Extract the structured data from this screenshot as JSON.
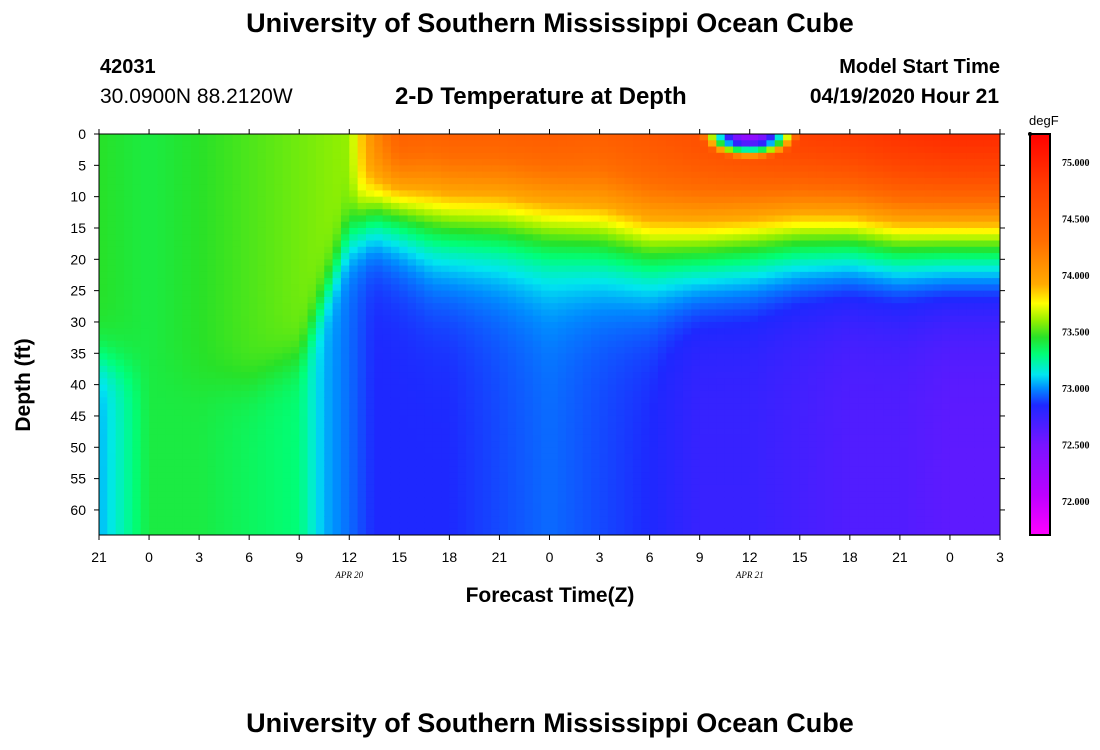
{
  "header": {
    "title": "University of Southern Mississippi Ocean Cube",
    "station_id": "42031",
    "coords": "30.0900N 88.2120W",
    "chart_title": "2-D Temperature at Depth",
    "start_label": "Model Start Time",
    "start_value": "04/19/2020 Hour 21"
  },
  "footer": {
    "title": "University of Southern Mississippi Ocean Cube"
  },
  "chart_data": {
    "type": "heatmap",
    "title": "2-D Temperature at Depth",
    "xlabel": "Forecast Time(Z)",
    "ylabel": "Depth (ft)",
    "x_unit": "hours since model start (04/19/2020 21Z)",
    "xlim": [
      0,
      54
    ],
    "ylim": [
      0,
      64
    ],
    "x_ticks": [
      {
        "h": 0,
        "label": "21"
      },
      {
        "h": 3,
        "label": "0"
      },
      {
        "h": 6,
        "label": "3"
      },
      {
        "h": 9,
        "label": "6"
      },
      {
        "h": 12,
        "label": "9"
      },
      {
        "h": 15,
        "label": "12"
      },
      {
        "h": 18,
        "label": "15"
      },
      {
        "h": 21,
        "label": "18"
      },
      {
        "h": 24,
        "label": "21"
      },
      {
        "h": 27,
        "label": "0"
      },
      {
        "h": 30,
        "label": "3"
      },
      {
        "h": 33,
        "label": "6"
      },
      {
        "h": 36,
        "label": "9"
      },
      {
        "h": 39,
        "label": "12"
      },
      {
        "h": 42,
        "label": "15"
      },
      {
        "h": 45,
        "label": "18"
      },
      {
        "h": 48,
        "label": "21"
      },
      {
        "h": 51,
        "label": "0"
      },
      {
        "h": 54,
        "label": "3"
      }
    ],
    "date_labels": [
      {
        "h": 15,
        "label": "APR 20"
      },
      {
        "h": 39,
        "label": "APR 21"
      }
    ],
    "y_ticks": [
      0,
      5,
      10,
      15,
      20,
      25,
      30,
      35,
      40,
      45,
      50,
      55,
      60
    ],
    "colorbar": {
      "unit": "degF",
      "min": 71.7,
      "max": 75.25,
      "ticks": [
        "72.000",
        "72.500",
        "73.000",
        "73.500",
        "74.000",
        "74.500",
        "75.000"
      ],
      "tick_values": [
        72.0,
        72.5,
        73.0,
        73.5,
        74.0,
        74.5,
        75.0
      ]
    },
    "surface_layer": {
      "hours": [
        0,
        3,
        6,
        9,
        12,
        15,
        16.5,
        18,
        21,
        24,
        27,
        30,
        33,
        36,
        39,
        42,
        45,
        48,
        51,
        54
      ],
      "temps": [
        73.45,
        73.4,
        73.45,
        73.5,
        73.55,
        73.6,
        74.15,
        74.55,
        74.6,
        74.6,
        74.6,
        74.55,
        74.6,
        74.7,
        74.8,
        74.9,
        74.95,
        75.0,
        75.05,
        75.05
      ],
      "bottom_depth_ft": [
        36,
        38,
        40,
        40,
        36,
        16,
        12,
        11,
        12,
        12,
        13,
        14,
        16,
        16,
        15,
        14,
        14,
        15,
        15,
        15
      ]
    },
    "deep_layer": {
      "hours": [
        0,
        3,
        6,
        9,
        12,
        13.5,
        15,
        16.5,
        18,
        21,
        24,
        27,
        30,
        33,
        36,
        39,
        42,
        45,
        48,
        51,
        54
      ],
      "temps": [
        73.05,
        73.4,
        73.4,
        73.35,
        73.3,
        73.05,
        72.95,
        72.85,
        72.85,
        72.85,
        72.9,
        72.95,
        72.9,
        72.85,
        72.75,
        72.75,
        72.7,
        72.65,
        72.65,
        72.6,
        72.6
      ]
    },
    "surface_cold_patch": {
      "hours": [
        36,
        42
      ],
      "depth_ft": [
        0,
        4
      ],
      "min_temp": 72.3
    }
  }
}
